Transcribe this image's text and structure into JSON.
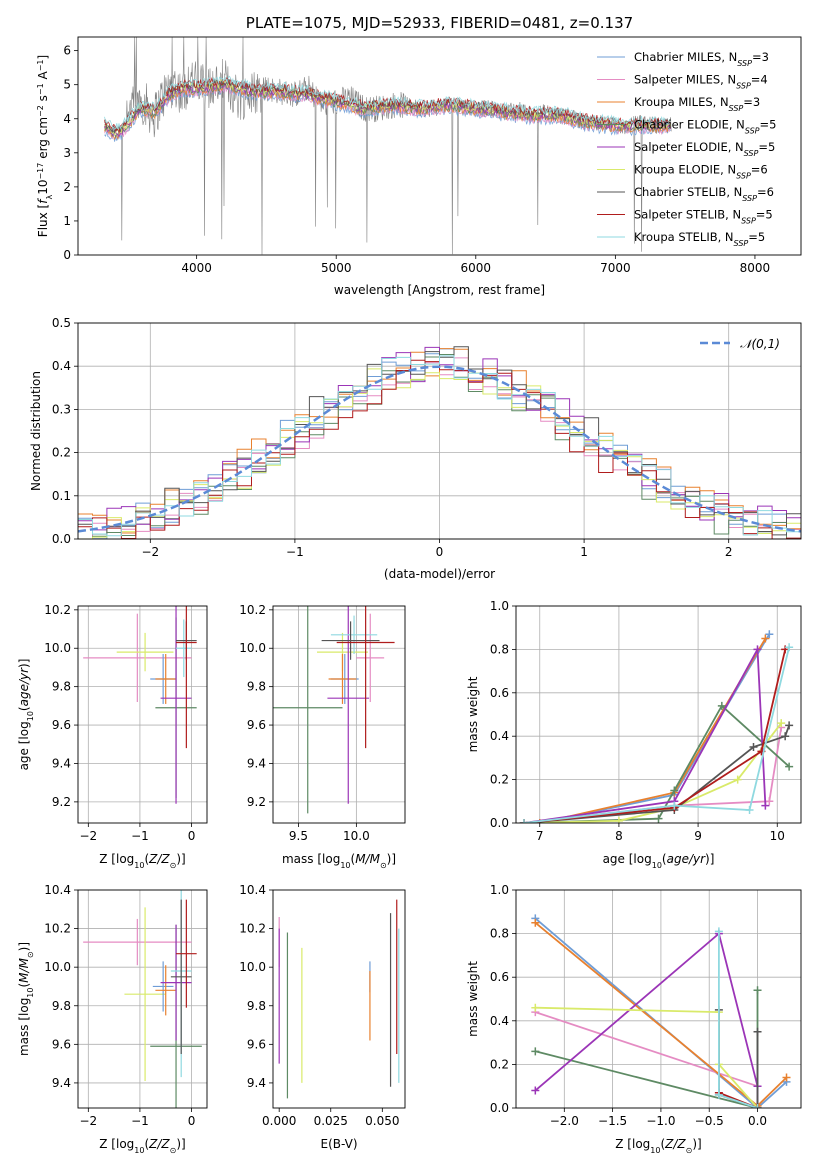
{
  "chart_data": [
    {
      "id": "spectrum",
      "type": "line",
      "title": "PLATE=1075, MJD=52933, FIBERID=0481, z=0.137",
      "xlabel": "wavelength [Angstrom, rest frame]",
      "ylabel": "Flux [f_λ10^-17 erg cm^-2 s^-1 A^-1]",
      "xlim": [
        3150,
        8330
      ],
      "ylim": [
        0,
        6.4
      ],
      "xticks": [
        "4000",
        "5000",
        "6000",
        "7000",
        "8000"
      ],
      "yticks": [
        "0",
        "1",
        "2",
        "3",
        "4",
        "5",
        "6"
      ],
      "grid": false,
      "legend_position": "top-right",
      "observed_color": "#808080",
      "observed_x": [
        3340,
        3400,
        3450,
        3500,
        3550,
        3600,
        3650,
        3700,
        3750,
        3800,
        3850,
        3900,
        3950,
        4000,
        4100,
        4200,
        4300,
        4400,
        4500,
        4600,
        4700,
        4800,
        4900,
        5000,
        5100,
        5200,
        5300,
        5400,
        5500,
        5600,
        5700,
        5800,
        5900,
        6000,
        6100,
        6200,
        6300,
        6400,
        6500,
        6600,
        6700,
        6800,
        6900,
        7000,
        7100,
        7200,
        7300,
        7400
      ],
      "observed_y": [
        3.8,
        3.6,
        3.7,
        3.9,
        4.4,
        4.6,
        4.3,
        4.1,
        4.6,
        4.9,
        5.0,
        4.7,
        5.2,
        5.0,
        4.9,
        5.1,
        4.6,
        4.8,
        4.9,
        4.8,
        4.7,
        4.9,
        4.4,
        4.5,
        4.6,
        4.3,
        4.3,
        4.4,
        4.4,
        4.3,
        4.3,
        4.4,
        4.4,
        4.3,
        4.3,
        4.2,
        4.3,
        4.1,
        4.2,
        4.1,
        4.0,
        3.9,
        3.9,
        3.8,
        3.8,
        3.9,
        3.8,
        3.8
      ],
      "model_x": [
        3340,
        3400,
        3450,
        3500,
        3550,
        3600,
        3700,
        3800,
        3900,
        4000,
        4200,
        4400,
        4600,
        4800,
        5000,
        5200,
        5400,
        5600,
        5800,
        6000,
        6200,
        6400,
        6600,
        6800,
        7000,
        7200,
        7400
      ],
      "model_y": [
        3.8,
        3.6,
        3.6,
        3.8,
        4.1,
        4.3,
        4.2,
        4.7,
        4.9,
        4.9,
        5.0,
        4.8,
        4.8,
        4.7,
        4.5,
        4.3,
        4.4,
        4.3,
        4.4,
        4.3,
        4.2,
        4.1,
        4.1,
        3.9,
        3.8,
        3.8,
        3.8
      ],
      "legend": [
        {
          "name": "Chabrier MILES, N_SSP=3",
          "color": "#6f9dd6"
        },
        {
          "name": "Salpeter MILES, N_SSP=4",
          "color": "#e58cc3"
        },
        {
          "name": "Kroupa MILES, N_SSP=3",
          "color": "#e8812f"
        },
        {
          "name": "Chabrier ELODIE, N_SSP=5",
          "color": "#5e8a64"
        },
        {
          "name": "Salpeter ELODIE, N_SSP=5",
          "color": "#9b35b7"
        },
        {
          "name": "Kroupa ELODIE, N_SSP=6",
          "color": "#d9ea6a"
        },
        {
          "name": "Chabrier STELIB, N_SSP=6",
          "color": "#555555"
        },
        {
          "name": "Salpeter STELIB, N_SSP=5",
          "color": "#b01d1d"
        },
        {
          "name": "Kroupa STELIB, N_SSP=5",
          "color": "#8fd9e0"
        }
      ]
    },
    {
      "id": "residuals",
      "type": "line",
      "xlabel": "(data-model)/error",
      "ylabel": "Normed distribution",
      "xlim": [
        -2.5,
        2.5
      ],
      "ylim": [
        0,
        0.5
      ],
      "xticks": [
        "−2",
        "−1",
        "0",
        "1",
        "2"
      ],
      "yticks": [
        "0.0",
        "0.1",
        "0.2",
        "0.3",
        "0.4",
        "0.5"
      ],
      "grid": true,
      "legend_position": "top-right",
      "reference_label": "𝒩(0,1)",
      "reference_color": "#5b8ad6",
      "bin_width": 0.1,
      "series": [
        {
          "color": "#6f9dd6",
          "offset": 0.01
        },
        {
          "color": "#e58cc3",
          "offset": -0.015
        },
        {
          "color": "#e8812f",
          "offset": 0.02
        },
        {
          "color": "#5e8a64",
          "offset": -0.02
        },
        {
          "color": "#9b35b7",
          "offset": 0.015
        },
        {
          "color": "#d9ea6a",
          "offset": -0.01
        },
        {
          "color": "#555555",
          "offset": 0.025
        },
        {
          "color": "#b01d1d",
          "offset": -0.025
        },
        {
          "color": "#8fd9e0",
          "offset": 0.005
        }
      ]
    },
    {
      "id": "age-vs-z",
      "type": "scatter",
      "xlabel": "Z [log10(Z/Z⊙)]",
      "ylabel": "age [log10(age/yr)]",
      "xlim": [
        -2.2,
        0.3
      ],
      "ylim": [
        9.09,
        10.22
      ],
      "xticks": [
        "−2",
        "−1",
        "0"
      ],
      "yticks": [
        "9.2",
        "9.4",
        "9.6",
        "9.8",
        "10.0",
        "10.2"
      ],
      "grid": true,
      "points": [
        {
          "color": "#e58cc3",
          "x": -1.05,
          "y": 9.95,
          "xerr": 1.05,
          "yerr": 0.23
        },
        {
          "color": "#d9ea6a",
          "x": -0.9,
          "y": 9.98,
          "xerr": 0.55,
          "yerr": 0.1
        },
        {
          "color": "#6f9dd6",
          "x": -0.55,
          "y": 9.84,
          "xerr": 0.25,
          "yerr": 0.13
        },
        {
          "color": "#e8812f",
          "x": -0.5,
          "y": 9.84,
          "xerr": 0.2,
          "yerr": 0.13
        },
        {
          "color": "#5e8a64",
          "x": -0.3,
          "y": 9.69,
          "xerr": 0.4,
          "yerr": 0.47
        },
        {
          "color": "#9b35b7",
          "x": -0.3,
          "y": 9.74,
          "xerr": 0.3,
          "yerr": 0.55
        },
        {
          "color": "#8fd9e0",
          "x": -0.15,
          "y": 10.0,
          "xerr": 0.15,
          "yerr": 0.15
        },
        {
          "color": "#555555",
          "x": -0.1,
          "y": 10.04,
          "xerr": 0.2,
          "yerr": 0.1
        },
        {
          "color": "#b01d1d",
          "x": -0.1,
          "y": 10.03,
          "xerr": 0.2,
          "yerr": 0.55
        }
      ]
    },
    {
      "id": "age-vs-mass",
      "type": "scatter",
      "xlabel": "mass [log10(M/M⊙)]",
      "ylabel": "",
      "xlim": [
        9.28,
        10.42
      ],
      "ylim": [
        9.09,
        10.22
      ],
      "xticks": [
        "9.5",
        "10.0"
      ],
      "yticks": [
        "9.2",
        "9.4",
        "9.6",
        "9.8",
        "10.0",
        "10.2"
      ],
      "grid": true,
      "points": [
        {
          "color": "#e58cc3",
          "x": 10.12,
          "y": 9.95,
          "xerr": 0.12,
          "yerr": 0.23
        },
        {
          "color": "#d9ea6a",
          "x": 9.88,
          "y": 9.98,
          "xerr": 0.22,
          "yerr": 0.1
        },
        {
          "color": "#6f9dd6",
          "x": 9.9,
          "y": 9.84,
          "xerr": 0.12,
          "yerr": 0.13
        },
        {
          "color": "#e8812f",
          "x": 9.88,
          "y": 9.84,
          "xerr": 0.12,
          "yerr": 0.13
        },
        {
          "color": "#5e8a64",
          "x": 9.58,
          "y": 9.69,
          "xerr": 0.3,
          "yerr": 0.55
        },
        {
          "color": "#9b35b7",
          "x": 9.93,
          "y": 9.74,
          "xerr": 0.18,
          "yerr": 0.55
        },
        {
          "color": "#8fd9e0",
          "x": 9.98,
          "y": 10.07,
          "xerr": 0.2,
          "yerr": 0.1
        },
        {
          "color": "#555555",
          "x": 9.95,
          "y": 10.04,
          "xerr": 0.25,
          "yerr": 0.1
        },
        {
          "color": "#b01d1d",
          "x": 10.08,
          "y": 10.03,
          "xerr": 0.25,
          "yerr": 0.55
        }
      ]
    },
    {
      "id": "weight-vs-age",
      "type": "line",
      "xlabel": "age [log10(age/yr)]",
      "ylabel": "mass weight",
      "xlim": [
        6.7,
        10.3
      ],
      "ylim": [
        0,
        1
      ],
      "xticks": [
        "7",
        "8",
        "9",
        "10"
      ],
      "yticks": [
        "0.0",
        "0.2",
        "0.4",
        "0.6",
        "0.8",
        "1.0"
      ],
      "grid": true,
      "series": [
        {
          "color": "#6f9dd6",
          "x": [
            6.8,
            7.0,
            8.7,
            9.9
          ],
          "y": [
            0.0,
            0.0,
            0.13,
            0.87
          ]
        },
        {
          "color": "#e58cc3",
          "x": [
            6.8,
            8.7,
            9.9,
            10.05
          ],
          "y": [
            0.0,
            0.08,
            0.1,
            0.44
          ]
        },
        {
          "color": "#e8812f",
          "x": [
            6.8,
            7.0,
            8.7,
            9.85
          ],
          "y": [
            0.0,
            0.0,
            0.14,
            0.85
          ]
        },
        {
          "color": "#5e8a64",
          "x": [
            6.8,
            8.5,
            8.7,
            9.3,
            10.15
          ],
          "y": [
            0.0,
            0.02,
            0.15,
            0.54,
            0.26
          ]
        },
        {
          "color": "#9b35b7",
          "x": [
            6.8,
            8.7,
            9.75,
            9.85
          ],
          "y": [
            0.0,
            0.1,
            0.8,
            0.08
          ]
        },
        {
          "color": "#d9ea6a",
          "x": [
            6.8,
            8.0,
            8.7,
            9.5,
            10.05
          ],
          "y": [
            0.0,
            0.01,
            0.07,
            0.2,
            0.46
          ]
        },
        {
          "color": "#555555",
          "x": [
            6.8,
            8.7,
            9.7,
            10.1,
            10.15
          ],
          "y": [
            0.0,
            0.06,
            0.35,
            0.4,
            0.45
          ]
        },
        {
          "color": "#b01d1d",
          "x": [
            6.8,
            8.7,
            9.8,
            10.1
          ],
          "y": [
            0.0,
            0.07,
            0.33,
            0.8
          ]
        },
        {
          "color": "#8fd9e0",
          "x": [
            6.8,
            8.7,
            9.65,
            10.15
          ],
          "y": [
            0.0,
            0.08,
            0.06,
            0.81
          ]
        }
      ]
    },
    {
      "id": "mass-vs-z",
      "type": "scatter",
      "xlabel": "Z [log10(Z/Z⊙)]",
      "ylabel": "mass [log10(M/M⊙)]",
      "xlim": [
        -2.2,
        0.3
      ],
      "ylim": [
        9.27,
        10.4
      ],
      "xticks": [
        "−2",
        "−1",
        "0"
      ],
      "yticks": [
        "9.4",
        "9.6",
        "9.8",
        "10.0",
        "10.2",
        "10.4"
      ],
      "grid": true,
      "points": [
        {
          "color": "#e58cc3",
          "x": -1.05,
          "y": 10.13,
          "xerr": 1.05,
          "yerr": 0.12
        },
        {
          "color": "#d9ea6a",
          "x": -0.9,
          "y": 9.86,
          "xerr": 0.4,
          "yerr": 0.45
        },
        {
          "color": "#6f9dd6",
          "x": -0.55,
          "y": 9.9,
          "xerr": 0.2,
          "yerr": 0.13
        },
        {
          "color": "#e8812f",
          "x": -0.5,
          "y": 9.88,
          "xerr": 0.2,
          "yerr": 0.13
        },
        {
          "color": "#5e8a64",
          "x": -0.3,
          "y": 9.59,
          "xerr": 0.5,
          "yerr": 0.63
        },
        {
          "color": "#9b35b7",
          "x": -0.3,
          "y": 9.92,
          "xerr": 0.3,
          "yerr": 0.3
        },
        {
          "color": "#8fd9e0",
          "x": -0.2,
          "y": 9.98,
          "xerr": 0.2,
          "yerr": 0.55
        },
        {
          "color": "#555555",
          "x": -0.2,
          "y": 9.95,
          "xerr": 0.2,
          "yerr": 0.4
        },
        {
          "color": "#b01d1d",
          "x": -0.1,
          "y": 10.07,
          "xerr": 0.2,
          "yerr": 0.28
        }
      ]
    },
    {
      "id": "mass-vs-ebv",
      "type": "scatter",
      "xlabel": "E(B-V)",
      "ylabel": "",
      "xlim": [
        -0.003,
        0.061
      ],
      "ylim": [
        9.27,
        10.4
      ],
      "xticks": [
        "0.000",
        "0.025",
        "0.050"
      ],
      "yticks": [
        "9.4",
        "9.6",
        "9.8",
        "10.0",
        "10.2",
        "10.4"
      ],
      "grid": false,
      "points": [
        {
          "color": "#e58cc3",
          "x": 0.0,
          "y": 10.13,
          "xerr": 0,
          "yerr": 0.13
        },
        {
          "color": "#9b35b7",
          "x": 0.0,
          "y": 9.85,
          "xerr": 0,
          "yerr": 0.35
        },
        {
          "color": "#5e8a64",
          "x": 0.004,
          "y": 9.75,
          "xerr": 0,
          "yerr": 0.43
        },
        {
          "color": "#d9ea6a",
          "x": 0.011,
          "y": 9.75,
          "xerr": 0,
          "yerr": 0.35
        },
        {
          "color": "#6f9dd6",
          "x": 0.044,
          "y": 9.95,
          "xerr": 0,
          "yerr": 0.08
        },
        {
          "color": "#e8812f",
          "x": 0.044,
          "y": 9.8,
          "xerr": 0,
          "yerr": 0.18
        },
        {
          "color": "#555555",
          "x": 0.054,
          "y": 9.83,
          "xerr": 0,
          "yerr": 0.45
        },
        {
          "color": "#b01d1d",
          "x": 0.057,
          "y": 9.95,
          "xerr": 0,
          "yerr": 0.4
        },
        {
          "color": "#8fd9e0",
          "x": 0.058,
          "y": 9.8,
          "xerr": 0,
          "yerr": 0.4
        }
      ]
    },
    {
      "id": "weight-vs-z",
      "type": "line",
      "xlabel": "Z [log10(Z/Z⊙)]",
      "ylabel": "mass weight",
      "xlim": [
        -2.5,
        0.45
      ],
      "ylim": [
        0,
        1
      ],
      "xticks": [
        "−2.0",
        "−1.5",
        "−1.0",
        "−0.5",
        "0.0"
      ],
      "yticks": [
        "0.0",
        "0.2",
        "0.4",
        "0.6",
        "0.8",
        "1.0"
      ],
      "grid": true,
      "series": [
        {
          "color": "#6f9dd6",
          "x": [
            -2.3,
            0.0,
            0.3
          ],
          "y": [
            0.87,
            0.0,
            0.12
          ]
        },
        {
          "color": "#e58cc3",
          "x": [
            -2.3,
            0.0
          ],
          "y": [
            0.44,
            0.1
          ]
        },
        {
          "color": "#e8812f",
          "x": [
            -2.3,
            0.0,
            0.3
          ],
          "y": [
            0.85,
            0.01,
            0.14
          ]
        },
        {
          "color": "#5e8a64",
          "x": [
            -2.3,
            0.0,
            0.0
          ],
          "y": [
            0.26,
            0.0,
            0.54
          ]
        },
        {
          "color": "#9b35b7",
          "x": [
            -2.3,
            -0.4,
            0.0,
            0.0
          ],
          "y": [
            0.08,
            0.8,
            0.1,
            0.0
          ]
        },
        {
          "color": "#d9ea6a",
          "x": [
            -2.3,
            -0.4,
            -0.4,
            0.0
          ],
          "y": [
            0.46,
            0.44,
            0.2,
            0.0
          ]
        },
        {
          "color": "#555555",
          "x": [
            -0.4,
            -0.4,
            0.0,
            0.0
          ],
          "y": [
            0.45,
            0.06,
            0.0,
            0.35
          ]
        },
        {
          "color": "#b01d1d",
          "x": [
            -0.4,
            0.0
          ],
          "y": [
            0.07,
            0.0
          ]
        },
        {
          "color": "#8fd9e0",
          "x": [
            -0.4,
            -0.4,
            0.0
          ],
          "y": [
            0.81,
            0.06,
            0.0
          ]
        }
      ]
    }
  ]
}
